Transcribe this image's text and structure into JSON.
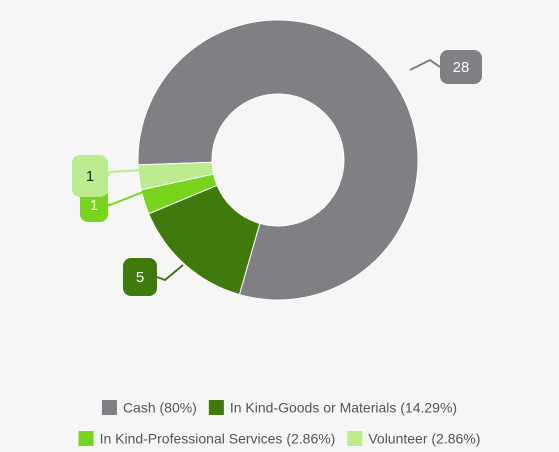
{
  "chart_data": {
    "type": "donut",
    "categories": [
      "Cash (80%)",
      "In Kind-Goods or Materials (14.29%)",
      "In Kind-Professional Services (2.86%)",
      "Volunteer (2.86%)"
    ],
    "values": [
      28,
      5,
      1,
      1
    ],
    "colors": [
      "#7f7f84",
      "#3e7a0c",
      "#78d41c",
      "#bcec8f"
    ],
    "legend": "bottom"
  }
}
